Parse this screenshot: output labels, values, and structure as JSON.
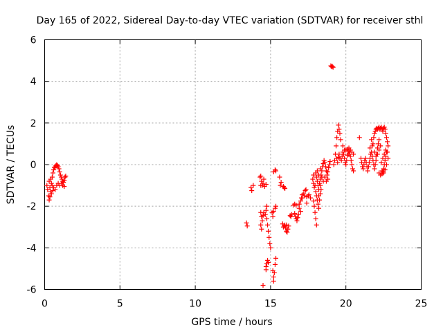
{
  "chart_data": {
    "type": "scatter",
    "title": "Day 165 of 2022, Sidereal Day-to-day VTEC variation (SDTVAR) for receiver sthl",
    "xlabel": "GPS time / hours",
    "ylabel": "SDTVAR / TECUs",
    "xlim": [
      0,
      25
    ],
    "ylim": [
      -6,
      6
    ],
    "xticks": [
      0,
      5,
      10,
      15,
      20,
      25
    ],
    "yticks": [
      -6,
      -4,
      -2,
      0,
      2,
      4,
      6
    ],
    "x_tick_labels": [
      "0",
      "5",
      "10",
      "15",
      "20",
      "25"
    ],
    "y_tick_labels": [
      "-6",
      "-4",
      "-2",
      "0",
      "2",
      "4",
      "6"
    ],
    "grid": true,
    "marker": "plus",
    "series": [
      {
        "color": "#ff0000",
        "points": [
          [
            0.15,
            -1.0
          ],
          [
            0.2,
            -1.2
          ],
          [
            0.25,
            -1.5
          ],
          [
            0.3,
            -1.7
          ],
          [
            0.35,
            -1.55
          ],
          [
            0.4,
            -1.3
          ],
          [
            0.45,
            -0.9
          ],
          [
            0.5,
            -0.6
          ],
          [
            0.55,
            -0.4
          ],
          [
            0.6,
            -0.25
          ],
          [
            0.65,
            -0.15
          ],
          [
            0.7,
            -0.1
          ],
          [
            0.75,
            -0.05
          ],
          [
            0.8,
            0.0
          ],
          [
            0.85,
            -0.05
          ],
          [
            0.9,
            -0.1
          ],
          [
            0.95,
            -0.2
          ],
          [
            1.0,
            -0.35
          ],
          [
            1.05,
            -0.5
          ],
          [
            1.1,
            -0.6
          ],
          [
            1.15,
            -0.7
          ],
          [
            1.2,
            -0.8
          ],
          [
            1.25,
            -0.85
          ],
          [
            1.3,
            -0.75
          ],
          [
            1.35,
            -0.6
          ],
          [
            1.4,
            -0.55
          ],
          [
            0.3,
            -0.8
          ],
          [
            0.4,
            -0.7
          ],
          [
            0.5,
            -1.0
          ],
          [
            0.6,
            -1.1
          ],
          [
            0.7,
            -1.2
          ],
          [
            0.8,
            -1.0
          ],
          [
            0.9,
            -0.9
          ],
          [
            1.0,
            -1.0
          ],
          [
            1.1,
            -0.9
          ],
          [
            1.2,
            -1.0
          ],
          [
            1.3,
            -1.05
          ],
          [
            0.45,
            -1.4
          ],
          [
            0.55,
            -1.25
          ],
          [
            0.35,
            -1.1
          ],
          [
            13.4,
            -2.8
          ],
          [
            13.45,
            -2.95
          ],
          [
            13.7,
            -1.1
          ],
          [
            13.75,
            -1.25
          ],
          [
            13.85,
            -1.0
          ],
          [
            14.3,
            -0.6
          ],
          [
            14.35,
            -0.55
          ],
          [
            14.4,
            -0.8
          ],
          [
            14.45,
            -1.0
          ],
          [
            14.5,
            -0.9
          ],
          [
            14.55,
            -0.7
          ],
          [
            14.6,
            -1.05
          ],
          [
            14.7,
            -0.95
          ],
          [
            14.35,
            -1.0
          ],
          [
            14.35,
            -2.3
          ],
          [
            14.4,
            -2.5
          ],
          [
            14.45,
            -2.7
          ],
          [
            14.5,
            -2.45
          ],
          [
            14.55,
            -2.3
          ],
          [
            14.35,
            -2.9
          ],
          [
            14.4,
            -3.1
          ],
          [
            14.65,
            -2.4
          ],
          [
            14.75,
            -2.6
          ],
          [
            14.8,
            -2.9
          ],
          [
            14.85,
            -3.2
          ],
          [
            14.9,
            -3.5
          ],
          [
            14.95,
            -3.8
          ],
          [
            15.0,
            -4.0
          ],
          [
            14.7,
            -2.2
          ],
          [
            14.75,
            -2.0
          ],
          [
            14.7,
            -4.9
          ],
          [
            14.75,
            -4.75
          ],
          [
            14.8,
            -4.6
          ],
          [
            14.85,
            -4.7
          ],
          [
            14.7,
            -5.05
          ],
          [
            14.5,
            -5.8
          ],
          [
            15.15,
            -5.1
          ],
          [
            15.2,
            -5.4
          ],
          [
            15.25,
            -5.2
          ],
          [
            15.3,
            -4.8
          ],
          [
            15.35,
            -4.5
          ],
          [
            15.2,
            -5.6
          ],
          [
            15.1,
            -2.3
          ],
          [
            15.15,
            -2.5
          ],
          [
            15.2,
            -2.25
          ],
          [
            15.3,
            -2.1
          ],
          [
            15.35,
            -2.0
          ],
          [
            15.2,
            -0.35
          ],
          [
            15.3,
            -0.25
          ],
          [
            15.35,
            -0.3
          ],
          [
            15.6,
            -0.6
          ],
          [
            15.65,
            -1.0
          ],
          [
            15.7,
            -0.85
          ],
          [
            15.85,
            -1.05
          ],
          [
            15.9,
            -1.1
          ],
          [
            15.95,
            -1.15
          ],
          [
            15.8,
            -2.85
          ],
          [
            15.85,
            -3.0
          ],
          [
            15.9,
            -2.95
          ],
          [
            16.0,
            -3.05
          ],
          [
            16.05,
            -3.2
          ],
          [
            16.1,
            -3.25
          ],
          [
            16.15,
            -3.1
          ],
          [
            16.2,
            -2.95
          ],
          [
            16.05,
            -2.9
          ],
          [
            15.95,
            -2.9
          ],
          [
            16.3,
            -2.45
          ],
          [
            16.35,
            -2.5
          ],
          [
            16.4,
            -2.4
          ],
          [
            16.5,
            -1.95
          ],
          [
            16.6,
            -1.9
          ],
          [
            16.6,
            -2.35
          ],
          [
            16.65,
            -2.5
          ],
          [
            16.7,
            -2.6
          ],
          [
            16.75,
            -2.7
          ],
          [
            16.8,
            -2.55
          ],
          [
            16.85,
            -2.4
          ],
          [
            16.9,
            -2.1
          ],
          [
            16.7,
            -1.95
          ],
          [
            16.9,
            -1.9
          ],
          [
            17.0,
            -1.75
          ],
          [
            17.05,
            -1.6
          ],
          [
            17.1,
            -1.6
          ],
          [
            17.0,
            -2.25
          ],
          [
            17.1,
            -1.45
          ],
          [
            17.2,
            -1.4
          ],
          [
            17.3,
            -1.25
          ],
          [
            17.35,
            -1.2
          ],
          [
            17.25,
            -1.5
          ],
          [
            17.4,
            -1.55
          ],
          [
            17.5,
            -1.5
          ],
          [
            17.55,
            -1.45
          ],
          [
            17.65,
            -1.6
          ],
          [
            17.4,
            -1.85
          ],
          [
            17.8,
            -0.7
          ],
          [
            17.85,
            -0.9
          ],
          [
            17.9,
            -1.1
          ],
          [
            17.95,
            -1.0
          ],
          [
            17.85,
            -0.5
          ],
          [
            18.0,
            -0.4
          ],
          [
            18.05,
            -0.6
          ],
          [
            18.1,
            -0.8
          ],
          [
            18.15,
            -1.0
          ],
          [
            18.2,
            -1.2
          ],
          [
            18.25,
            -0.9
          ],
          [
            18.3,
            -0.7
          ],
          [
            18.35,
            -0.5
          ],
          [
            18.4,
            -0.3
          ],
          [
            18.45,
            -0.1
          ],
          [
            18.5,
            0.05
          ],
          [
            18.55,
            0.2
          ],
          [
            18.6,
            0.1
          ],
          [
            18.65,
            -0.1
          ],
          [
            18.7,
            -0.3
          ],
          [
            18.75,
            -0.5
          ],
          [
            18.8,
            -0.35
          ],
          [
            18.85,
            -0.15
          ],
          [
            18.9,
            0.0
          ],
          [
            18.95,
            0.15
          ],
          [
            18.0,
            -1.3
          ],
          [
            18.05,
            -1.5
          ],
          [
            18.1,
            -1.7
          ],
          [
            18.15,
            -1.9
          ],
          [
            18.2,
            -2.1
          ],
          [
            17.85,
            -1.75
          ],
          [
            17.9,
            -2.0
          ],
          [
            17.95,
            -2.3
          ],
          [
            18.0,
            -2.6
          ],
          [
            18.05,
            -2.9
          ],
          [
            18.2,
            -1.5
          ],
          [
            18.25,
            -1.7
          ],
          [
            18.3,
            -1.4
          ],
          [
            18.35,
            -1.2
          ],
          [
            18.3,
            -1.0
          ],
          [
            18.1,
            -0.3
          ],
          [
            18.2,
            -0.5
          ],
          [
            18.3,
            -0.2
          ],
          [
            18.4,
            -0.6
          ],
          [
            18.5,
            -0.8
          ],
          [
            18.6,
            -0.6
          ],
          [
            18.7,
            -0.8
          ],
          [
            18.8,
            -0.7
          ],
          [
            19.0,
            4.75
          ],
          [
            19.05,
            4.7
          ],
          [
            19.1,
            4.72
          ],
          [
            19.15,
            4.68
          ],
          [
            19.2,
            0.0
          ],
          [
            19.25,
            0.2
          ],
          [
            19.3,
            0.5
          ],
          [
            19.35,
            0.9
          ],
          [
            19.4,
            1.3
          ],
          [
            19.45,
            1.6
          ],
          [
            19.5,
            1.9
          ],
          [
            19.55,
            1.7
          ],
          [
            19.6,
            1.5
          ],
          [
            19.65,
            1.2
          ],
          [
            19.4,
            0.3
          ],
          [
            19.45,
            0.1
          ],
          [
            19.5,
            0.35
          ],
          [
            19.55,
            0.5
          ],
          [
            19.6,
            0.3
          ],
          [
            19.7,
            0.2
          ],
          [
            19.75,
            0.4
          ],
          [
            19.8,
            0.6
          ],
          [
            19.85,
            0.5
          ],
          [
            19.9,
            0.3
          ],
          [
            19.95,
            0.1
          ],
          [
            20.0,
            0.0
          ],
          [
            20.05,
            0.2
          ],
          [
            20.1,
            0.45
          ],
          [
            20.15,
            0.65
          ],
          [
            20.2,
            0.8
          ],
          [
            20.25,
            0.6
          ],
          [
            20.3,
            0.4
          ],
          [
            20.35,
            0.2
          ],
          [
            20.4,
            0.0
          ],
          [
            20.45,
            -0.2
          ],
          [
            20.5,
            -0.3
          ],
          [
            20.0,
            0.7
          ],
          [
            20.1,
            0.75
          ],
          [
            20.2,
            0.5
          ],
          [
            19.9,
            0.7
          ],
          [
            19.8,
            0.9
          ],
          [
            20.3,
            0.7
          ],
          [
            20.4,
            0.6
          ],
          [
            20.5,
            0.5
          ],
          [
            20.9,
            1.3
          ],
          [
            21.0,
            0.3
          ],
          [
            21.05,
            0.1
          ],
          [
            21.1,
            -0.1
          ],
          [
            21.15,
            -0.2
          ],
          [
            21.2,
            0.0
          ],
          [
            21.25,
            0.2
          ],
          [
            21.3,
            0.3
          ],
          [
            21.35,
            0.1
          ],
          [
            21.4,
            -0.1
          ],
          [
            21.45,
            -0.3
          ],
          [
            21.5,
            -0.1
          ],
          [
            21.55,
            0.1
          ],
          [
            21.6,
            0.3
          ],
          [
            21.65,
            0.5
          ],
          [
            21.7,
            0.6
          ],
          [
            21.75,
            0.4
          ],
          [
            21.8,
            0.2
          ],
          [
            21.85,
            0.0
          ],
          [
            21.9,
            -0.2
          ],
          [
            21.95,
            0.0
          ],
          [
            22.0,
            0.2
          ],
          [
            22.05,
            0.5
          ],
          [
            22.1,
            0.8
          ],
          [
            22.15,
            1.0
          ],
          [
            22.2,
            1.2
          ],
          [
            21.8,
            1.0
          ],
          [
            21.85,
            1.3
          ],
          [
            21.9,
            1.5
          ],
          [
            21.95,
            1.6
          ],
          [
            22.0,
            1.7
          ],
          [
            22.05,
            1.75
          ],
          [
            22.1,
            1.7
          ],
          [
            22.15,
            1.75
          ],
          [
            22.2,
            1.8
          ],
          [
            22.25,
            1.7
          ],
          [
            22.3,
            1.75
          ],
          [
            22.35,
            1.8
          ],
          [
            22.4,
            1.7
          ],
          [
            22.45,
            1.6
          ],
          [
            22.5,
            1.75
          ],
          [
            22.55,
            1.8
          ],
          [
            22.6,
            1.7
          ],
          [
            22.65,
            1.5
          ],
          [
            22.7,
            1.3
          ],
          [
            22.75,
            1.1
          ],
          [
            22.8,
            0.9
          ],
          [
            22.7,
            0.6
          ],
          [
            22.65,
            0.4
          ],
          [
            22.6,
            0.2
          ],
          [
            22.55,
            0.0
          ],
          [
            22.5,
            -0.2
          ],
          [
            22.45,
            -0.35
          ],
          [
            22.4,
            -0.45
          ],
          [
            22.3,
            -0.5
          ],
          [
            22.2,
            -0.4
          ],
          [
            22.35,
            0.1
          ],
          [
            22.45,
            0.3
          ],
          [
            22.55,
            0.5
          ],
          [
            22.65,
            0.7
          ],
          [
            22.75,
            0.6
          ],
          [
            22.8,
            0.3
          ],
          [
            22.7,
            0.0
          ],
          [
            22.6,
            -0.25
          ],
          [
            22.5,
            -0.4
          ],
          [
            22.4,
            -0.3
          ],
          [
            21.9,
            0.6
          ],
          [
            22.0,
            0.4
          ],
          [
            22.1,
            0.5
          ],
          [
            22.2,
            0.7
          ],
          [
            22.3,
            0.9
          ],
          [
            21.7,
            1.2
          ],
          [
            21.75,
            0.9
          ],
          [
            21.6,
            0.8
          ]
        ]
      }
    ]
  }
}
